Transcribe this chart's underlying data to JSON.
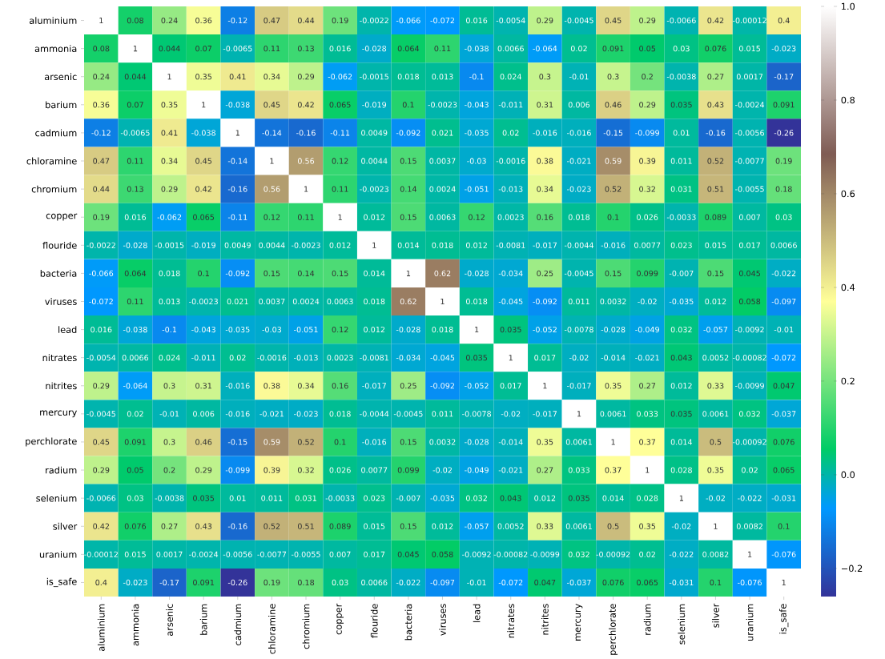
{
  "chart_data": {
    "type": "heatmap",
    "categories": [
      "aluminium",
      "ammonia",
      "arsenic",
      "barium",
      "cadmium",
      "chloramine",
      "chromium",
      "copper",
      "flouride",
      "bacteria",
      "viruses",
      "lead",
      "nitrates",
      "nitrites",
      "mercury",
      "perchlorate",
      "radium",
      "selenium",
      "silver",
      "uranium",
      "is_safe"
    ],
    "y_categories": [
      "aluminium",
      "ammonia",
      "arsenic",
      "barium",
      "cadmium",
      "chloramine",
      "chromium",
      "copper",
      "flouride",
      "bacteria",
      "viruses",
      "lead",
      "nitrates",
      "nitrites",
      "mercury",
      "perchlorate",
      "radium",
      "selenium",
      "silver",
      "uranium",
      "is_safe"
    ],
    "cells": [
      [
        1,
        0.08,
        0.24,
        0.36,
        -0.12,
        0.47,
        0.44,
        0.19,
        -0.0022,
        -0.066,
        -0.072,
        0.016,
        -0.0054,
        0.29,
        -0.0045,
        0.45,
        0.29,
        -0.0066,
        0.42,
        -0.00012,
        0.4
      ],
      [
        0.08,
        1,
        0.044,
        0.07,
        -0.0065,
        0.11,
        0.13,
        0.016,
        -0.028,
        0.064,
        0.11,
        -0.038,
        0.0066,
        -0.064,
        0.02,
        0.091,
        0.05,
        0.03,
        0.076,
        0.015,
        -0.023
      ],
      [
        0.24,
        0.044,
        1,
        0.35,
        0.41,
        0.34,
        0.29,
        -0.062,
        -0.0015,
        0.018,
        0.013,
        -0.1,
        0.024,
        0.3,
        -0.01,
        0.3,
        0.2,
        -0.0038,
        0.27,
        0.0017,
        -0.17
      ],
      [
        0.36,
        0.07,
        0.35,
        1,
        -0.038,
        0.45,
        0.42,
        0.065,
        -0.019,
        0.1,
        -0.0023,
        -0.043,
        -0.011,
        0.31,
        0.006,
        0.46,
        0.29,
        0.035,
        0.43,
        -0.0024,
        0.091
      ],
      [
        -0.12,
        -0.0065,
        0.41,
        -0.038,
        1,
        -0.14,
        -0.16,
        -0.11,
        0.0049,
        -0.092,
        0.021,
        -0.035,
        0.02,
        -0.016,
        -0.016,
        -0.15,
        -0.099,
        0.01,
        -0.16,
        -0.0056,
        -0.26
      ],
      [
        0.47,
        0.11,
        0.34,
        0.45,
        -0.14,
        1,
        0.56,
        0.12,
        0.0044,
        0.15,
        0.0037,
        -0.03,
        -0.0016,
        0.38,
        -0.021,
        0.59,
        0.39,
        0.011,
        0.52,
        -0.0077,
        0.19
      ],
      [
        0.44,
        0.13,
        0.29,
        0.42,
        -0.16,
        0.56,
        1,
        0.11,
        -0.0023,
        0.14,
        0.0024,
        -0.051,
        -0.013,
        0.34,
        -0.023,
        0.52,
        0.32,
        0.031,
        0.51,
        -0.0055,
        0.18
      ],
      [
        0.19,
        0.016,
        -0.062,
        0.065,
        -0.11,
        0.12,
        0.11,
        1,
        0.012,
        0.15,
        0.0063,
        0.12,
        0.0023,
        0.16,
        0.018,
        0.1,
        0.026,
        -0.0033,
        0.089,
        0.007,
        0.03
      ],
      [
        -0.0022,
        -0.028,
        -0.0015,
        -0.019,
        0.0049,
        0.0044,
        -0.0023,
        0.012,
        1,
        0.014,
        0.018,
        0.012,
        -0.0081,
        -0.017,
        -0.0044,
        -0.016,
        0.0077,
        0.023,
        0.015,
        0.017,
        0.0066
      ],
      [
        -0.066,
        0.064,
        0.018,
        0.1,
        -0.092,
        0.15,
        0.14,
        0.15,
        0.014,
        1,
        0.62,
        -0.028,
        -0.034,
        0.25,
        -0.0045,
        0.15,
        0.099,
        -0.007,
        0.15,
        0.045,
        -0.022
      ],
      [
        -0.072,
        0.11,
        0.013,
        -0.0023,
        0.021,
        0.0037,
        0.0024,
        0.0063,
        0.018,
        0.62,
        1,
        0.018,
        -0.045,
        -0.092,
        0.011,
        0.0032,
        -0.02,
        -0.035,
        0.012,
        0.058,
        -0.097
      ],
      [
        0.016,
        -0.038,
        -0.1,
        -0.043,
        -0.035,
        -0.03,
        -0.051,
        0.12,
        0.012,
        -0.028,
        0.018,
        1,
        0.035,
        -0.052,
        -0.0078,
        -0.028,
        -0.049,
        0.032,
        -0.057,
        -0.0092,
        -0.01
      ],
      [
        -0.0054,
        0.0066,
        0.024,
        -0.011,
        0.02,
        -0.0016,
        -0.013,
        0.0023,
        -0.0081,
        -0.034,
        -0.045,
        0.035,
        1,
        0.017,
        -0.02,
        -0.014,
        -0.021,
        0.043,
        0.0052,
        -0.00082,
        -0.072
      ],
      [
        0.29,
        -0.064,
        0.3,
        0.31,
        -0.016,
        0.38,
        0.34,
        0.16,
        -0.017,
        0.25,
        -0.092,
        -0.052,
        0.017,
        1,
        -0.017,
        0.35,
        0.27,
        0.012,
        0.33,
        -0.0099,
        0.047
      ],
      [
        -0.0045,
        0.02,
        -0.01,
        0.006,
        -0.016,
        -0.021,
        -0.023,
        0.018,
        -0.0044,
        -0.0045,
        0.011,
        -0.0078,
        -0.02,
        -0.017,
        1,
        0.0061,
        0.033,
        0.035,
        0.0061,
        0.032,
        -0.037
      ],
      [
        0.45,
        0.091,
        0.3,
        0.46,
        -0.15,
        0.59,
        0.52,
        0.1,
        -0.016,
        0.15,
        0.0032,
        -0.028,
        -0.014,
        0.35,
        0.0061,
        1,
        0.37,
        0.014,
        0.5,
        -0.00092,
        0.076
      ],
      [
        0.29,
        0.05,
        0.2,
        0.29,
        -0.099,
        0.39,
        0.32,
        0.026,
        0.0077,
        0.099,
        -0.02,
        -0.049,
        -0.021,
        0.27,
        0.033,
        0.37,
        1,
        0.028,
        0.35,
        0.02,
        0.065
      ],
      [
        -0.0066,
        0.03,
        -0.0038,
        0.035,
        0.01,
        0.011,
        0.031,
        -0.0033,
        0.023,
        -0.007,
        -0.035,
        0.032,
        0.043,
        0.012,
        0.035,
        0.014,
        0.028,
        1,
        -0.02,
        -0.022,
        -0.031
      ],
      [
        0.42,
        0.076,
        0.27,
        0.43,
        -0.16,
        0.52,
        0.51,
        0.089,
        0.015,
        0.15,
        0.012,
        -0.057,
        0.0052,
        0.33,
        0.0061,
        0.5,
        0.35,
        -0.02,
        1,
        0.0082,
        0.1
      ],
      [
        -0.00012,
        0.015,
        0.0017,
        -0.0024,
        -0.0056,
        -0.0077,
        -0.0055,
        0.007,
        0.017,
        0.045,
        0.058,
        -0.0092,
        -0.00082,
        -0.0099,
        0.032,
        -0.00092,
        0.02,
        -0.022,
        0.0082,
        1,
        -0.076
      ],
      [
        0.4,
        -0.023,
        -0.17,
        0.091,
        -0.26,
        0.19,
        0.18,
        0.03,
        0.0066,
        -0.022,
        -0.097,
        -0.01,
        -0.072,
        0.047,
        -0.037,
        0.076,
        0.065,
        -0.031,
        0.1,
        -0.076,
        1
      ]
    ],
    "clim": [
      -0.26,
      1
    ],
    "cticks": [
      {
        "value": -0.2,
        "label": "−0.2"
      },
      {
        "value": 0,
        "label": "0.0"
      },
      {
        "value": 0.2,
        "label": "0.2"
      },
      {
        "value": 0.4,
        "label": "0.4"
      },
      {
        "value": 0.6,
        "label": "0.6"
      },
      {
        "value": 0.8,
        "label": "0.8"
      },
      {
        "value": 1,
        "label": "1.0"
      }
    ],
    "data_labels": true
  }
}
